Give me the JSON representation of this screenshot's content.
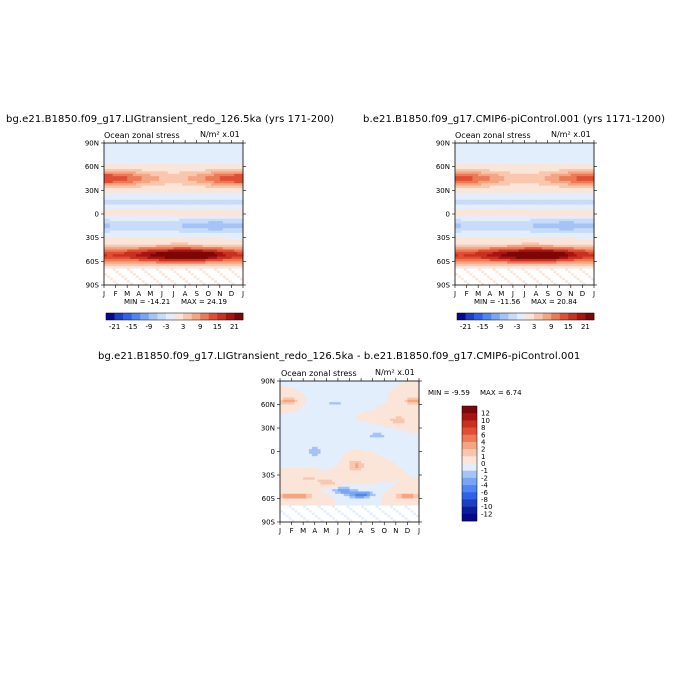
{
  "chart_data": [
    {
      "type": "heatmap",
      "title": "bg.e21.B1850.f09_g17.LIGtransient_redo_126.5ka (yrs 171-200)",
      "field_label": "Ocean zonal stress",
      "units": "N/m² x.01",
      "x_ticks": [
        "J",
        "F",
        "M",
        "A",
        "M",
        "J",
        "J",
        "A",
        "S",
        "O",
        "N",
        "D",
        "J"
      ],
      "y_ticks": [
        "90N",
        "60N",
        "30N",
        "0",
        "30S",
        "60S",
        "90S"
      ],
      "min_text": "MIN = -14.21",
      "max_text": "MAX = 24.19",
      "min": -14.21,
      "max": 24.19,
      "colorbar": {
        "levels": [
          "-21",
          "-15",
          "-9",
          "-3",
          "3",
          "9",
          "15",
          "21"
        ],
        "colors": [
          "#08088a",
          "#1c3fc4",
          "#2f62e8",
          "#4f86f0",
          "#78a6f4",
          "#a4c3f7",
          "#c8dcfa",
          "#e3eefc",
          "#fbe4d8",
          "#f8c7ad",
          "#f4a582",
          "#ec7a57",
          "#e04f34",
          "#c8301f",
          "#a51512",
          "#7d0606"
        ]
      }
    },
    {
      "type": "heatmap",
      "title": "b.e21.B1850.f09_g17.CMIP6-piControl.001 (yrs 1171-1200)",
      "field_label": "Ocean zonal stress",
      "units": "N/m² x.01",
      "x_ticks": [
        "J",
        "F",
        "M",
        "A",
        "M",
        "J",
        "J",
        "A",
        "S",
        "O",
        "N",
        "D",
        "J"
      ],
      "y_ticks": [
        "90N",
        "60N",
        "30N",
        "0",
        "30S",
        "60S",
        "90S"
      ],
      "min_text": "MIN = -11.56",
      "max_text": "MAX = 20.84",
      "min": -11.56,
      "max": 20.84,
      "colorbar": {
        "levels": [
          "-21",
          "-15",
          "-9",
          "-3",
          "3",
          "9",
          "15",
          "21"
        ],
        "colors": [
          "#08088a",
          "#1c3fc4",
          "#2f62e8",
          "#4f86f0",
          "#78a6f4",
          "#a4c3f7",
          "#c8dcfa",
          "#e3eefc",
          "#fbe4d8",
          "#f8c7ad",
          "#f4a582",
          "#ec7a57",
          "#e04f34",
          "#c8301f",
          "#a51512",
          "#7d0606"
        ]
      }
    },
    {
      "type": "heatmap",
      "title": "bg.e21.B1850.f09_g17.LIGtransient_redo_126.5ka - b.e21.B1850.f09_g17.CMIP6-piControl.001",
      "field_label": "Ocean zonal stress",
      "units": "N/m² x.01",
      "x_ticks": [
        "J",
        "F",
        "M",
        "A",
        "M",
        "J",
        "J",
        "A",
        "S",
        "O",
        "N",
        "D",
        "J"
      ],
      "y_ticks": [
        "90N",
        "60N",
        "30N",
        "0",
        "30S",
        "60S",
        "90S"
      ],
      "min_text": "MIN =   -9.59",
      "max_text": "MAX =    6.74",
      "min": -9.59,
      "max": 6.74,
      "colorbar": {
        "levels": [
          "12",
          "10",
          "8",
          "6",
          "4",
          "2",
          "1",
          "0",
          "-1",
          "-2",
          "-4",
          "-6",
          "-8",
          "-10",
          "-12"
        ],
        "colors": [
          "#7d0606",
          "#a51512",
          "#c8301f",
          "#e04f34",
          "#ec7a57",
          "#f4a582",
          "#f8c7ad",
          "#fbe4d8",
          "#e3eefc",
          "#a4c3f7",
          "#78a6f4",
          "#4f86f0",
          "#2f62e8",
          "#1c3fc4",
          "#0a1f9e",
          "#08088a"
        ]
      }
    }
  ]
}
